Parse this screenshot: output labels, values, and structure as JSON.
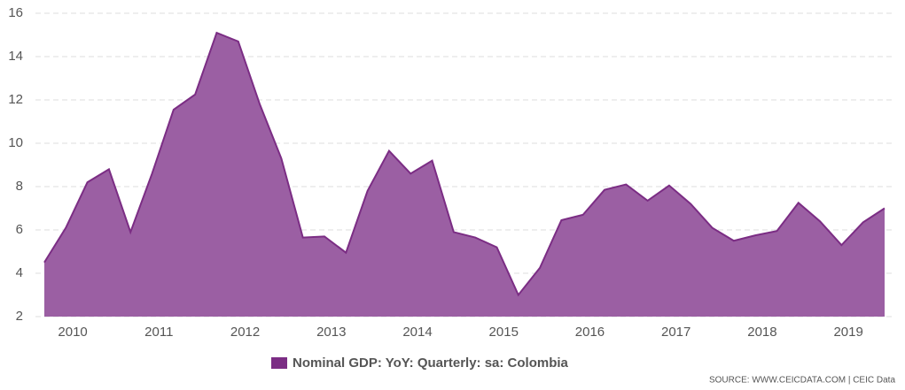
{
  "chart_data": {
    "type": "area",
    "x": [
      2009.67,
      2009.92,
      2010.17,
      2010.42,
      2010.67,
      2010.92,
      2011.17,
      2011.42,
      2011.67,
      2011.92,
      2012.17,
      2012.42,
      2012.67,
      2012.92,
      2013.17,
      2013.42,
      2013.67,
      2013.92,
      2014.17,
      2014.42,
      2014.67,
      2014.92,
      2015.17,
      2015.42,
      2015.67,
      2015.92,
      2016.17,
      2016.42,
      2016.67,
      2016.92,
      2017.17,
      2017.42,
      2017.67,
      2017.92,
      2018.17,
      2018.42,
      2018.67,
      2018.92,
      2019.17,
      2019.42
    ],
    "series": [
      {
        "name": "Nominal GDP: YoY: Quarterly: sa: Colombia",
        "color": "#7b2d84",
        "fill": "#9b5fa3",
        "values": [
          4.5,
          6.1,
          8.2,
          8.8,
          5.9,
          8.6,
          11.55,
          12.25,
          15.1,
          14.7,
          11.8,
          9.3,
          5.65,
          5.7,
          4.95,
          7.8,
          9.65,
          8.6,
          9.2,
          5.9,
          5.65,
          5.2,
          3.0,
          4.25,
          6.45,
          6.7,
          7.85,
          8.1,
          7.35,
          8.05,
          7.2,
          6.1,
          5.5,
          5.75,
          5.95,
          7.25,
          6.4,
          5.3,
          6.35,
          7.0
        ]
      }
    ],
    "xlim": [
      2009.67,
      2019.42
    ],
    "xticks": [
      2010,
      2011,
      2012,
      2013,
      2014,
      2015,
      2016,
      2017,
      2018,
      2019
    ],
    "ylim": [
      2,
      16
    ],
    "yticks": [
      2,
      4,
      6,
      8,
      10,
      12,
      14,
      16
    ],
    "grid": true,
    "source": "SOURCE: WWW.CEICDATA.COM | CEIC Data"
  }
}
